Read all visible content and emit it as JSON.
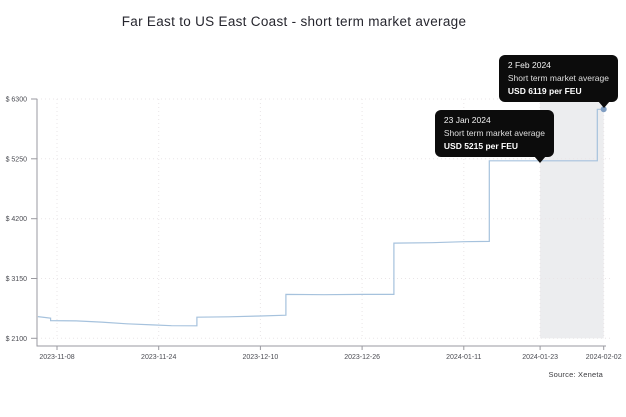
{
  "chart_data": {
    "type": "line",
    "title": "Far East to US East Coast - short term market average",
    "source": "Source: Xeneta",
    "xlabel": "",
    "ylabel": "USD per FEU",
    "grid": "dotted",
    "legend": "none",
    "line_color": "#a6c2dd",
    "dot_color": "#7f9dc2",
    "band_color": "#ecedef",
    "x_ticks": [
      "2023-11-08",
      "2023-11-24",
      "2023-12-10",
      "2023-12-26",
      "2024-01-11",
      "2024-01-23",
      "2024-02-02"
    ],
    "y_ticks": [
      {
        "label": "$ 6300",
        "value": 6300
      },
      {
        "label": "$ 5250",
        "value": 5250
      },
      {
        "label": "$ 4200",
        "value": 4200
      },
      {
        "label": "$ 3150",
        "value": 3150
      },
      {
        "label": "$ 2100",
        "value": 2100
      }
    ],
    "xlim": [
      "2023-11-05",
      "2024-02-02"
    ],
    "ylim": [
      2100,
      6300
    ],
    "highlight_band": {
      "from": "2024-01-23",
      "to": "2024-02-02"
    },
    "series": [
      {
        "name": "Short term market average",
        "unit": "USD per FEU",
        "points": [
          [
            "2023-11-05",
            2480
          ],
          [
            "2023-11-07",
            2455
          ],
          [
            "2023-11-07",
            2410
          ],
          [
            "2023-11-11",
            2405
          ],
          [
            "2023-11-15",
            2385
          ],
          [
            "2023-11-19",
            2355
          ],
          [
            "2023-11-23",
            2335
          ],
          [
            "2023-11-26",
            2322
          ],
          [
            "2023-11-30",
            2320
          ],
          [
            "2023-11-30",
            2470
          ],
          [
            "2023-12-05",
            2478
          ],
          [
            "2023-12-10",
            2492
          ],
          [
            "2023-12-14",
            2505
          ],
          [
            "2023-12-14",
            2870
          ],
          [
            "2023-12-20",
            2866
          ],
          [
            "2023-12-26",
            2870
          ],
          [
            "2023-12-31",
            2870
          ],
          [
            "2023-12-31",
            3770
          ],
          [
            "2024-01-06",
            3778
          ],
          [
            "2024-01-11",
            3795
          ],
          [
            "2024-01-15",
            3800
          ],
          [
            "2024-01-15",
            5215
          ],
          [
            "2024-01-23",
            5215
          ],
          [
            "2024-02-01",
            5215
          ],
          [
            "2024-02-01",
            6119
          ],
          [
            "2024-02-02",
            6119
          ]
        ]
      }
    ],
    "end_dot": {
      "date": "2024-02-02",
      "value": 6119
    },
    "tooltips": [
      {
        "date_label": "23 Jan 2024",
        "desc": "Short term market average",
        "value_label": "USD 5215 per FEU",
        "anchor_date": "2024-01-23",
        "anchor_value": 5215
      },
      {
        "date_label": "2 Feb 2024",
        "desc": "Short term market average",
        "value_label": "USD 6119 per FEU",
        "anchor_date": "2024-02-02",
        "anchor_value": 6119
      }
    ]
  }
}
